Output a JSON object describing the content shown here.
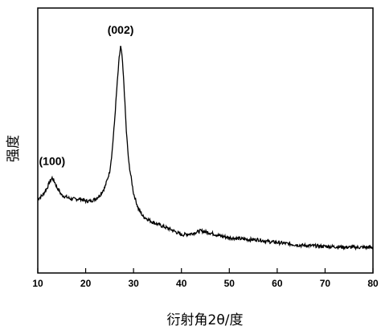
{
  "chart_data": {
    "type": "line",
    "xlabel": "衍射角2θ/度",
    "ylabel": "强度",
    "xlim": [
      10,
      80
    ],
    "x_ticks": [
      10,
      20,
      30,
      40,
      50,
      60,
      70,
      80
    ],
    "y_ticks_shown": false,
    "grid": false,
    "annotations": [
      {
        "text": "(100)",
        "x": 13.0
      },
      {
        "text": "(002)",
        "x": 27.3
      }
    ],
    "series": [
      {
        "x": [
          10,
          11,
          12,
          12.5,
          13,
          13.5,
          14,
          15,
          16,
          17,
          18,
          19,
          20,
          21,
          22,
          23,
          24,
          25,
          25.5,
          26,
          26.5,
          27,
          27.3,
          27.6,
          28,
          28.5,
          29,
          30,
          31,
          32,
          34,
          36,
          38,
          40,
          42,
          44,
          46,
          48,
          50,
          52,
          54,
          56,
          58,
          60,
          65,
          70,
          75,
          80
        ],
        "y": [
          0.21,
          0.23,
          0.27,
          0.3,
          0.32,
          0.3,
          0.27,
          0.23,
          0.22,
          0.21,
          0.21,
          0.21,
          0.2,
          0.2,
          0.21,
          0.23,
          0.27,
          0.35,
          0.45,
          0.6,
          0.78,
          0.94,
          1.0,
          0.95,
          0.8,
          0.56,
          0.4,
          0.24,
          0.16,
          0.12,
          0.09,
          0.07,
          0.05,
          0.025,
          0.03,
          0.045,
          0.035,
          0.02,
          0.01,
          0.005,
          0.0,
          0.0,
          -0.01,
          -0.015,
          -0.03,
          -0.035,
          -0.04,
          -0.04
        ]
      }
    ]
  }
}
